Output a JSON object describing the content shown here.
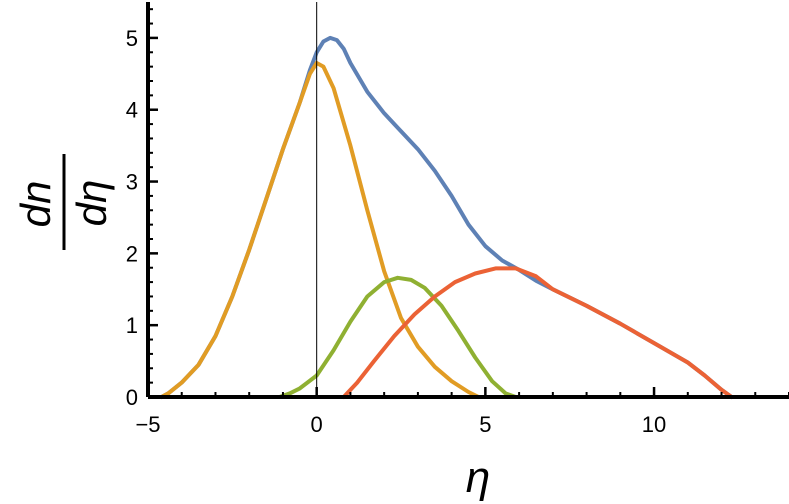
{
  "chart_data": {
    "type": "line",
    "title": "",
    "xlabel": "η",
    "ylabel": {
      "numerator": "dn",
      "denominator": "dη"
    },
    "xlim": [
      -5,
      14
    ],
    "ylim": [
      0,
      5.5
    ],
    "x_ticks": [
      -5,
      0,
      5,
      10
    ],
    "x_tick_labels": [
      "−5",
      "0",
      "5",
      "10"
    ],
    "y_ticks": [
      0,
      1,
      2,
      3,
      4,
      5
    ],
    "y_tick_labels": [
      "0",
      "1",
      "2",
      "3",
      "4",
      "5"
    ],
    "grid": false,
    "vertical_reference_line_x": 0,
    "series": [
      {
        "color": "#5e81b5",
        "points": [
          [
            -4.6,
            0
          ],
          [
            -4.4,
            0.05
          ],
          [
            -4,
            0.2
          ],
          [
            -3.5,
            0.45
          ],
          [
            -3,
            0.85
          ],
          [
            -2.5,
            1.4
          ],
          [
            -2,
            2.05
          ],
          [
            -1.5,
            2.75
          ],
          [
            -1,
            3.45
          ],
          [
            -0.5,
            4.1
          ],
          [
            -0.2,
            4.55
          ],
          [
            0,
            4.8
          ],
          [
            0.2,
            4.95
          ],
          [
            0.4,
            5.0
          ],
          [
            0.6,
            4.97
          ],
          [
            0.8,
            4.85
          ],
          [
            1,
            4.65
          ],
          [
            1.5,
            4.25
          ],
          [
            2,
            3.95
          ],
          [
            2.5,
            3.7
          ],
          [
            3,
            3.45
          ],
          [
            3.5,
            3.15
          ],
          [
            4,
            2.8
          ],
          [
            4.5,
            2.4
          ],
          [
            5,
            2.1
          ],
          [
            5.5,
            1.9
          ],
          [
            6,
            1.77
          ],
          [
            6.5,
            1.62
          ],
          [
            7,
            1.5
          ],
          [
            8,
            1.27
          ],
          [
            9,
            1.02
          ],
          [
            10,
            0.75
          ],
          [
            11,
            0.48
          ],
          [
            11.5,
            0.3
          ],
          [
            12,
            0.1
          ],
          [
            12.3,
            0
          ]
        ]
      },
      {
        "color": "#e19c24",
        "points": [
          [
            -4.6,
            0
          ],
          [
            -4.4,
            0.05
          ],
          [
            -4,
            0.2
          ],
          [
            -3.5,
            0.45
          ],
          [
            -3,
            0.85
          ],
          [
            -2.5,
            1.4
          ],
          [
            -2,
            2.05
          ],
          [
            -1.5,
            2.75
          ],
          [
            -1,
            3.45
          ],
          [
            -0.5,
            4.1
          ],
          [
            -0.2,
            4.5
          ],
          [
            0,
            4.65
          ],
          [
            0.2,
            4.6
          ],
          [
            0.5,
            4.3
          ],
          [
            1,
            3.5
          ],
          [
            1.5,
            2.6
          ],
          [
            2,
            1.75
          ],
          [
            2.5,
            1.1
          ],
          [
            3,
            0.7
          ],
          [
            3.5,
            0.42
          ],
          [
            4,
            0.22
          ],
          [
            4.5,
            0.07
          ],
          [
            4.8,
            0
          ]
        ]
      },
      {
        "color": "#8fb032",
        "points": [
          [
            -1.1,
            0
          ],
          [
            -0.8,
            0.05
          ],
          [
            -0.5,
            0.12
          ],
          [
            0,
            0.3
          ],
          [
            0.5,
            0.65
          ],
          [
            1,
            1.05
          ],
          [
            1.5,
            1.4
          ],
          [
            2,
            1.6
          ],
          [
            2.4,
            1.66
          ],
          [
            2.8,
            1.63
          ],
          [
            3.2,
            1.52
          ],
          [
            3.7,
            1.27
          ],
          [
            4.2,
            0.92
          ],
          [
            4.7,
            0.55
          ],
          [
            5.2,
            0.22
          ],
          [
            5.6,
            0.05
          ],
          [
            5.9,
            0
          ]
        ]
      },
      {
        "color": "#eb6235",
        "points": [
          [
            0.8,
            0
          ],
          [
            1.2,
            0.2
          ],
          [
            1.7,
            0.5
          ],
          [
            2.3,
            0.85
          ],
          [
            2.9,
            1.15
          ],
          [
            3.5,
            1.4
          ],
          [
            4.1,
            1.6
          ],
          [
            4.7,
            1.72
          ],
          [
            5.3,
            1.79
          ],
          [
            5.9,
            1.79
          ],
          [
            6.5,
            1.68
          ],
          [
            7,
            1.5
          ],
          [
            8,
            1.27
          ],
          [
            9,
            1.02
          ],
          [
            10,
            0.75
          ],
          [
            11,
            0.48
          ],
          [
            11.5,
            0.3
          ],
          [
            12,
            0.1
          ],
          [
            12.3,
            0
          ]
        ]
      }
    ]
  }
}
